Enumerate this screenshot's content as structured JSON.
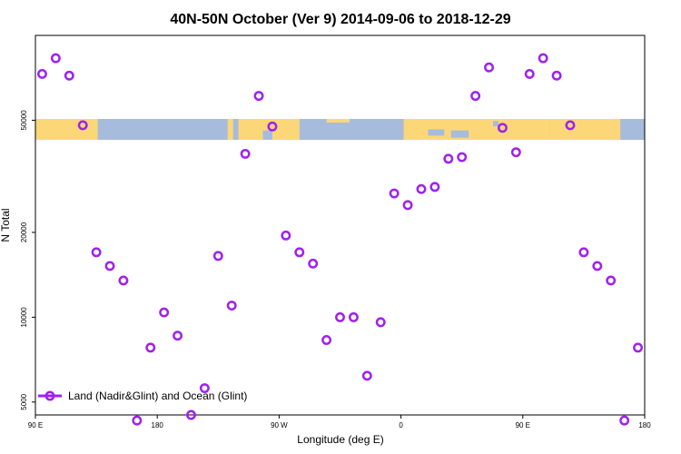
{
  "chart_data": {
    "type": "scatter",
    "title": "40N-50N October (Ver 9)   2014-09-06 to 2018-12-29",
    "xlabel": "Longitude (deg E)",
    "ylabel": "N Total",
    "xlim": [
      90,
      540
    ],
    "ylim_log": [
      4500,
      100000
    ],
    "y_scale": "log",
    "x_ticks": [
      {
        "value": 90,
        "label": "90 E"
      },
      {
        "value": 180,
        "label": "180"
      },
      {
        "value": 270,
        "label": "90 W"
      },
      {
        "value": 360,
        "label": "0"
      },
      {
        "value": 450,
        "label": "90 E"
      },
      {
        "value": 540,
        "label": "180"
      }
    ],
    "y_ticks": [
      {
        "value": 5000,
        "label": "5000"
      },
      {
        "value": 10000,
        "label": "10000"
      },
      {
        "value": 20000,
        "label": "20000"
      },
      {
        "value": 50000,
        "label": "50000"
      }
    ],
    "legend": {
      "label": "Land (Nadir&Glint) and Ocean (Glint)",
      "position": "bottom-left",
      "color": "#a020f0"
    },
    "series": [
      {
        "color": "#a020f0",
        "x": [
          95,
          105,
          115,
          125,
          135,
          145,
          155,
          165,
          175,
          185,
          195,
          205,
          215,
          225,
          235,
          245,
          255,
          265,
          275,
          285,
          295,
          305,
          315,
          325,
          335,
          345,
          355,
          365,
          375,
          385,
          395,
          405,
          415,
          425,
          435,
          445,
          455,
          465,
          475,
          485,
          495,
          505,
          515,
          525,
          535
        ],
        "y": [
          73000,
          83000,
          72000,
          48000,
          17000,
          15200,
          13500,
          4300,
          7800,
          10400,
          8600,
          4500,
          5600,
          16500,
          11000,
          38000,
          61000,
          47500,
          19500,
          17000,
          15500,
          8300,
          10000,
          10000,
          6200,
          9600,
          27500,
          25000,
          28500,
          29000,
          36500,
          37000,
          61000,
          77000,
          47000,
          38500,
          73000,
          83000,
          72000,
          48000,
          17000,
          15200,
          13500,
          4300,
          7800
        ]
      }
    ],
    "map_strip": {
      "ocean_color": "#a7bcdc",
      "land_color": "#fbd778"
    },
    "grid": false
  }
}
